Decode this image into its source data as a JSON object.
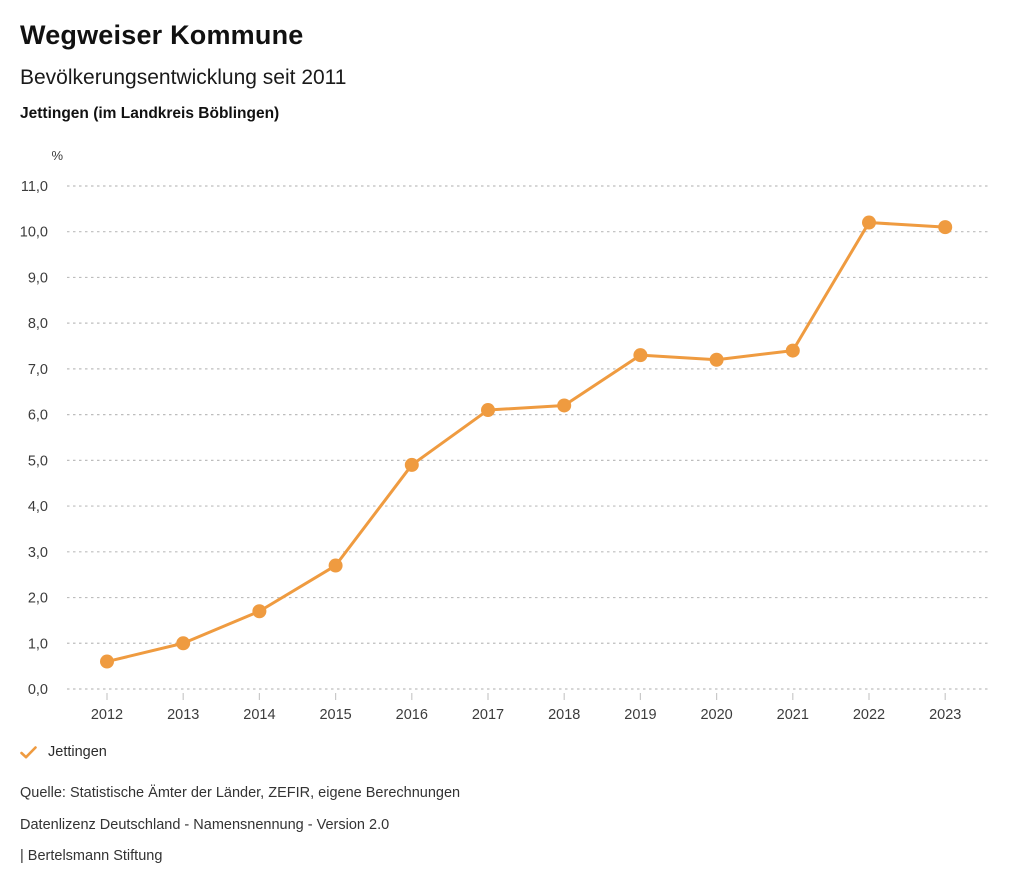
{
  "header": {
    "title": "Wegweiser Kommune",
    "subtitle": "Bevölkerungsentwicklung seit 2011",
    "region": "Jettingen (im Landkreis Böblingen)"
  },
  "chart_data": {
    "type": "line",
    "title": "Bevölkerungsentwicklung seit 2011",
    "subtitle": "Jettingen (im Landkreis Böblingen)",
    "unit_label": "%",
    "x": [
      "2012",
      "2013",
      "2014",
      "2015",
      "2016",
      "2017",
      "2018",
      "2019",
      "2020",
      "2021",
      "2022",
      "2023"
    ],
    "series": [
      {
        "name": "Jettingen",
        "values": [
          0.6,
          1.0,
          1.7,
          2.7,
          4.9,
          6.1,
          6.2,
          7.3,
          7.2,
          7.4,
          10.2,
          10.1
        ],
        "color": "#EF9B40"
      }
    ],
    "ylim": [
      0,
      11
    ],
    "y_ticks": [
      0,
      1,
      2,
      3,
      4,
      5,
      6,
      7,
      8,
      9,
      10,
      11
    ],
    "y_tick_labels": [
      "0,0",
      "1,0",
      "2,0",
      "3,0",
      "4,0",
      "5,0",
      "6,0",
      "7,0",
      "8,0",
      "9,0",
      "10,0",
      "11,0"
    ],
    "grid": "horizontal-dotted",
    "legend_position": "bottom-left",
    "colors": {
      "line": "#EF9B40",
      "grid": "#bdbdbd",
      "tick": "#c9c9c9",
      "axis_text": "#3c3c3c"
    }
  },
  "legend": {
    "items": [
      {
        "label": "Jettingen",
        "check_color": "#EF9B40"
      }
    ]
  },
  "footer": {
    "lines": [
      "Quelle: Statistische Ämter der Länder, ZEFIR, eigene Berechnungen",
      "Datenlizenz Deutschland - Namensnennung - Version 2.0",
      "| Bertelsmann Stiftung"
    ]
  }
}
